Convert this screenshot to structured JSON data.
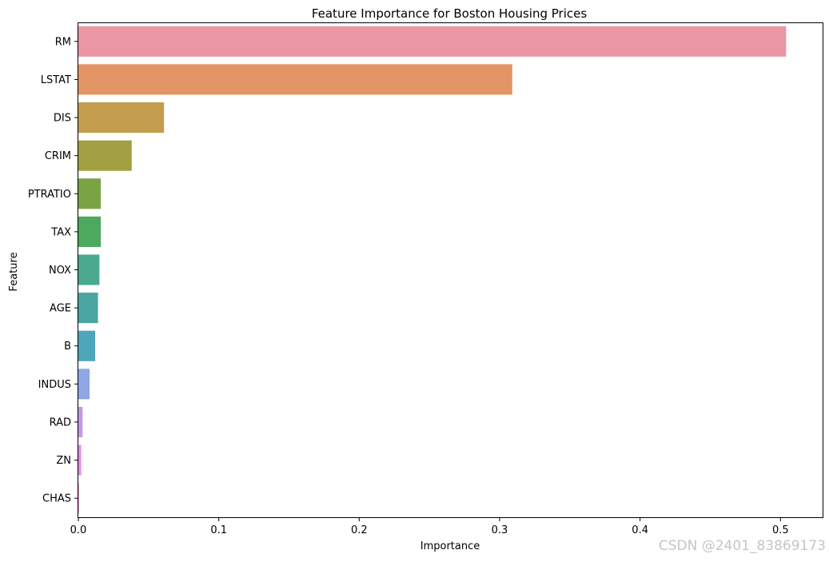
{
  "chart_data": {
    "type": "bar",
    "orientation": "horizontal",
    "title": "Feature Importance for Boston Housing Prices",
    "xlabel": "Importance",
    "ylabel": "Feature",
    "xlim": [
      0,
      0.53
    ],
    "xticks": [
      0.0,
      0.1,
      0.2,
      0.3,
      0.4,
      0.5
    ],
    "xtick_labels": [
      "0.0",
      "0.1",
      "0.2",
      "0.3",
      "0.4",
      "0.5"
    ],
    "grid": false,
    "categories": [
      "RM",
      "LSTAT",
      "DIS",
      "CRIM",
      "PTRATIO",
      "TAX",
      "NOX",
      "AGE",
      "B",
      "INDUS",
      "RAD",
      "ZN",
      "CHAS"
    ],
    "values": [
      0.504,
      0.309,
      0.061,
      0.038,
      0.016,
      0.016,
      0.015,
      0.014,
      0.012,
      0.008,
      0.003,
      0.002,
      0.0005
    ],
    "colors": [
      "#ea96a3",
      "#e39465",
      "#c39c4d",
      "#a2a042",
      "#7aa444",
      "#4ca95d",
      "#4aa88f",
      "#4aa5a0",
      "#4da6b9",
      "#8ea6e4",
      "#c598e4",
      "#e48ae5",
      "#ea93c5"
    ]
  },
  "watermark": "CSDN @2401_83869173"
}
